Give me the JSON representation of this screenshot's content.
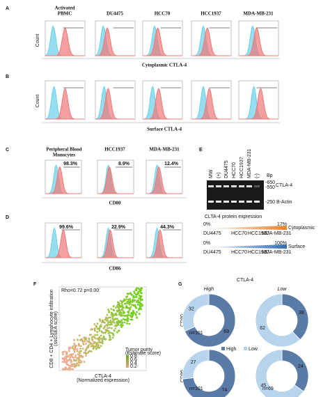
{
  "panel_a": {
    "label": "A",
    "columns": [
      "Activated",
      "PBMC",
      "DU4475",
      "HCC70",
      "HCC1937",
      "MDA-MB-231"
    ],
    "y_label": "Count",
    "x_label": "Cytoplasmic  CTLA-4"
  },
  "panel_b": {
    "label": "B",
    "y_label": "Count",
    "x_label": "Surface CTLA-4"
  },
  "panel_c": {
    "label": "C",
    "columns": [
      "Peripheral Blood",
      "Monocytes",
      "HCC1937",
      "MDA-MB-231"
    ],
    "percents": [
      "98.3%",
      "8.9%",
      "12.4%"
    ],
    "x_label": "CD80"
  },
  "panel_d": {
    "label": "D",
    "percents": [
      "99.6%",
      "22.9%",
      "44.3%"
    ],
    "x_label": "CD86"
  },
  "panel_e": {
    "label": "E",
    "lanes": [
      "MW",
      "(+)",
      "DU4475",
      "HCC70",
      "HCC1937",
      "MDA-MB-231",
      "(-)"
    ],
    "bp": "Bp",
    "markers": [
      "-650",
      "-550"
    ],
    "band_top": "CTLA-4",
    "band_bottom": "-250 B-Actin",
    "expr_title": "CLTA-4 protein expression",
    "cyto": {
      "min": "0%",
      "max": "17%",
      "name": "Cytoplasmic",
      "cells": [
        "DU4475",
        "HCC70",
        "HCC1937",
        "MDA-MB-231"
      ]
    },
    "surf": {
      "min": "0%",
      "max": "100%",
      "name": "Surface",
      "cells": [
        "DU4475",
        "HCC70",
        "HCC1937",
        "MDA-MB-231"
      ]
    }
  },
  "panel_f": {
    "label": "F",
    "stat": "Rho=0.72 p=0.00",
    "y_label": "CD8 + CD4 + Lymphocyte infiltration",
    "y_label2": "(ssGSEA score)",
    "x_label": "CTLA-4",
    "x_label2": "(Normalized expression)",
    "legend_title": "Tumor purity",
    "legend_title2": "(Estimate score)",
    "legend_ticks": [
      "0.8",
      "0.6",
      "0.4",
      "0.2"
    ]
  },
  "panel_g": {
    "label": "G",
    "title": "CTLA-4",
    "cols": [
      "High",
      "Low"
    ],
    "rows": [
      "CD80",
      "CD86"
    ],
    "legend": [
      "High",
      "Low"
    ],
    "donuts": [
      {
        "values": [
          69,
          32
        ],
        "n": "n=101"
      },
      {
        "values": [
          38,
          62
        ],
        "n": ""
      },
      {
        "values": [
          74,
          27
        ],
        "n": "n=101"
      },
      {
        "values": [
          24,
          45
        ],
        "n": "n=69"
      }
    ]
  }
}
